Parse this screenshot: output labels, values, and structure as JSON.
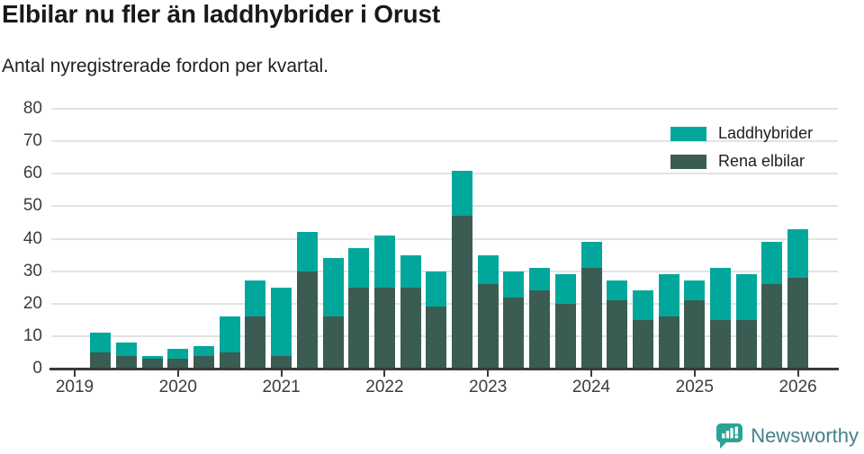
{
  "header": {
    "title": "Elbilar nu fler än laddhybrider i Orust",
    "subtitle": "Antal nyregistrerade fordon per kvartal."
  },
  "legend": {
    "items": [
      {
        "label": "Laddhybrider",
        "color": "#02a79c"
      },
      {
        "label": "Rena elbilar",
        "color": "#3b5c53"
      }
    ]
  },
  "chart_data": {
    "type": "bar",
    "stacked": true,
    "title": "Elbilar nu fler än laddhybrider i Orust",
    "subtitle": "Antal nyregistrerade fordon per kvartal.",
    "xlabel": "",
    "ylabel": "",
    "ylim": [
      0,
      80
    ],
    "grid": true,
    "legend_position": "top-right",
    "yticks": [
      0,
      10,
      20,
      30,
      40,
      50,
      60,
      70,
      80
    ],
    "xticks": [
      "2019",
      "2020",
      "2021",
      "2022",
      "2023",
      "2024",
      "2025",
      "2026"
    ],
    "categories": [
      "2019 K2",
      "2019 K3",
      "2019 K4",
      "2020 K1",
      "2020 K2",
      "2020 K3",
      "2020 K4",
      "2021 K1",
      "2021 K2",
      "2021 K3",
      "2021 K4",
      "2022 K1",
      "2022 K2",
      "2022 K3",
      "2022 K4",
      "2023 K1",
      "2023 K2",
      "2023 K3",
      "2023 K4",
      "2024 K1",
      "2024 K2",
      "2024 K3",
      "2024 K4",
      "2025 K1",
      "2025 K2",
      "2025 K3",
      "2025 K4",
      "2026 K1"
    ],
    "series": [
      {
        "name": "Rena elbilar",
        "color": "#3b5c53",
        "values": [
          5,
          4,
          3,
          3,
          4,
          5,
          16,
          4,
          30,
          16,
          25,
          25,
          25,
          19,
          47,
          26,
          22,
          24,
          20,
          31,
          21,
          15,
          16,
          21,
          15,
          15,
          26,
          28
        ]
      },
      {
        "name": "Laddhybrider",
        "color": "#02a79c",
        "values": [
          6,
          4,
          1,
          3,
          3,
          11,
          11,
          21,
          12,
          18,
          12,
          16,
          10,
          11,
          14,
          9,
          8,
          7,
          9,
          8,
          6,
          9,
          13,
          6,
          16,
          14,
          13,
          15
        ]
      }
    ],
    "totals": [
      11,
      8,
      4,
      6,
      7,
      16,
      27,
      25,
      42,
      34,
      37,
      41,
      35,
      30,
      61,
      35,
      30,
      31,
      29,
      39,
      27,
      24,
      29,
      27,
      31,
      29,
      39,
      43
    ]
  },
  "colors": {
    "laddhybrider": "#02a79c",
    "rena_elbilar": "#3b5c53",
    "gridline": "#e3e3e3",
    "axis": "#3a3a3a",
    "tick_text": "#3c3c3c",
    "title_text": "#191919",
    "brand_text": "#44808e",
    "brand_icon": "#2aa396"
  },
  "footer": {
    "brand": "Newsworthy"
  }
}
